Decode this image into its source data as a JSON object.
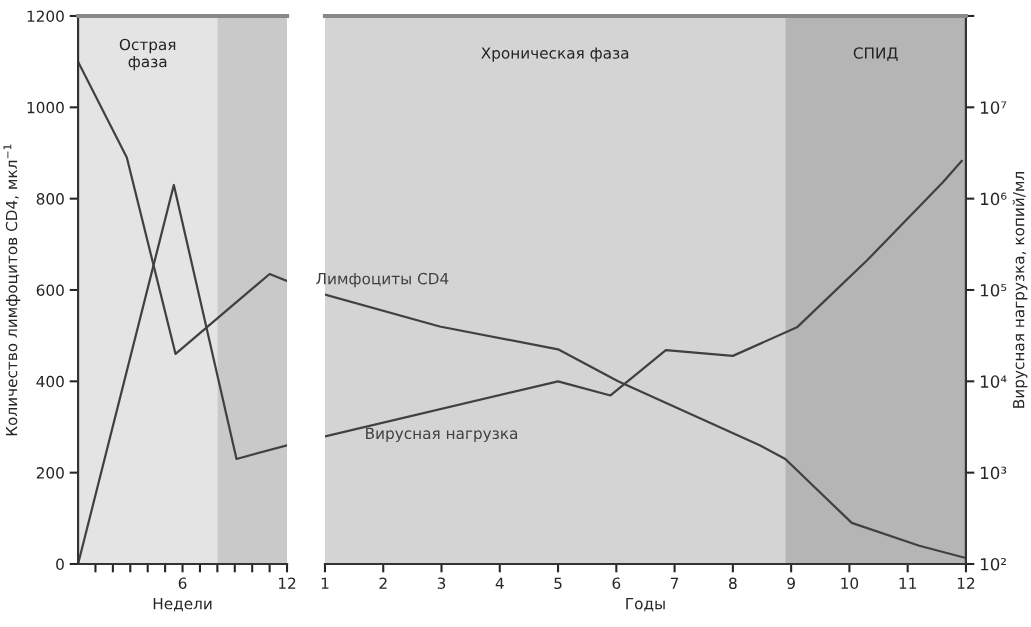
{
  "chart_data": [
    {
      "type": "line",
      "xlabel": "Недели",
      "ylabel": "Количество лимфоцитов CD4, мкл$^{−1}$",
      "xlim": [
        0,
        12
      ],
      "xticks": [
        {
          "value": 1,
          "label": null
        },
        {
          "value": 2,
          "label": null
        },
        {
          "value": 3,
          "label": null
        },
        {
          "value": 4,
          "label": null
        },
        {
          "value": 5,
          "label": null
        },
        6,
        {
          "value": 7,
          "label": null
        },
        {
          "value": 8,
          "label": null
        },
        {
          "value": 9,
          "label": null
        },
        {
          "value": 10,
          "label": null
        },
        {
          "value": 11,
          "label": null
        },
        12
      ],
      "ylim": [
        0,
        1200
      ],
      "yticks": [
        0,
        200,
        400,
        600,
        800,
        1000,
        1200
      ],
      "grid": false,
      "series": [
        {
          "color": "#404040",
          "x": [
            0,
            2.8,
            5.6,
            11,
            12
          ],
          "values": [
            1100,
            890,
            460,
            635,
            620
          ]
        },
        {
          "color": "#404040",
          "x": [
            0,
            5.5,
            9.1,
            12
          ],
          "values": [
            0,
            830,
            230,
            260
          ]
        }
      ],
      "bands": [
        {
          "axis": "x",
          "from": 0,
          "to": 8,
          "label": "Острая\nфаза",
          "color": "#e4e4e4"
        },
        {
          "axis": "x",
          "from": 8,
          "to": 12,
          "label": null,
          "color": "#c9c9c9"
        }
      ]
    },
    {
      "type": "line",
      "xlabel": "Годы",
      "y2label": "Вирусная нагрузка, копий/мл",
      "xlim": [
        1,
        12
      ],
      "xticks": [
        1,
        2,
        3,
        4,
        5,
        6,
        7,
        8,
        9,
        10,
        11,
        12
      ],
      "ylim": [
        0,
        1200
      ],
      "y2lim": [
        100,
        100000000
      ],
      "y2ticks": [
        {
          "value": 100,
          "label": "10²"
        },
        {
          "value": 1000,
          "label": "10³"
        },
        {
          "value": 10000,
          "label": "10⁴"
        },
        {
          "value": 100000,
          "label": "10⁵"
        },
        {
          "value": 1000000,
          "label": "10⁶"
        },
        {
          "value": 10000000,
          "label": "10⁷"
        },
        {
          "value": 100000000,
          "label": null
        }
      ],
      "log": "y2",
      "grid": false,
      "series": [
        {
          "name": "Лимфоциты CD4",
          "color": "#404040",
          "x": [
            1,
            2.97,
            5,
            6.03,
            8.46,
            8.9,
            10.04,
            11.2,
            12
          ],
          "values": [
            590,
            520,
            470,
            400,
            260,
            230,
            90,
            40,
            13
          ]
        },
        {
          "name": "Вирусная нагрузка",
          "color": "#404040",
          "axis": "y2",
          "x": [
            1,
            5,
            5.9,
            6.85,
            8,
            9.1,
            10.3,
            11.6,
            11.93
          ],
          "values": [
            2500,
            10000,
            7000,
            22000,
            19000,
            39000,
            210000,
            1500000,
            2600000
          ]
        }
      ],
      "bands": [
        {
          "axis": "x",
          "from": 1,
          "to": 8.9,
          "label": "Хроническая фаза",
          "color": "#d4d4d4"
        },
        {
          "axis": "x",
          "from": 8.9,
          "to": 12,
          "label": "СПИД",
          "color": "#b5b5b5"
        }
      ]
    }
  ]
}
